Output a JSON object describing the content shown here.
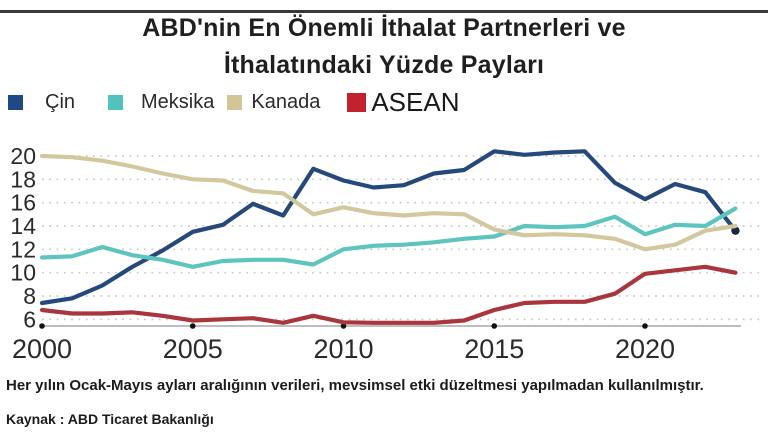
{
  "title": {
    "line1": "ABD'nin En Önemli İthalat Partnerleri ve",
    "line2": "İthalatındaki Yüzde Payları"
  },
  "legend": [
    {
      "label": "Çin",
      "color": "#1d4a85"
    },
    {
      "label": "Meksika",
      "color": "#52c2bf"
    },
    {
      "label": "Kanada",
      "color": "#d2c596"
    },
    {
      "label": "ASEAN",
      "color": "#c2212e"
    }
  ],
  "chart_data": {
    "type": "line",
    "title": "ABD'nin En Önemli İthalat Partnerleri ve İthalatındaki Yüzde Payları",
    "x": [
      2000,
      2001,
      2002,
      2003,
      2004,
      2005,
      2006,
      2007,
      2008,
      2009,
      2010,
      2011,
      2012,
      2013,
      2014,
      2015,
      2016,
      2017,
      2018,
      2019,
      2020,
      2021,
      2022,
      2023
    ],
    "series": [
      {
        "name": "Çin",
        "color": "#25497a",
        "values": [
          7.4,
          7.8,
          8.9,
          10.5,
          11.9,
          13.5,
          14.1,
          15.9,
          14.9,
          18.9,
          17.9,
          17.3,
          17.5,
          18.5,
          18.8,
          20.4,
          20.1,
          20.3,
          20.4,
          17.7,
          16.3,
          17.6,
          16.9,
          13.6
        ],
        "end_marker": true
      },
      {
        "name": "Meksika",
        "color": "#5dc4bf",
        "values": [
          11.3,
          11.4,
          12.2,
          11.5,
          11.1,
          10.5,
          11.0,
          11.1,
          11.1,
          10.7,
          12.0,
          12.3,
          12.4,
          12.6,
          12.9,
          13.1,
          14.0,
          13.9,
          14.0,
          14.8,
          13.3,
          14.1,
          14.0,
          15.5
        ],
        "end_marker": false
      },
      {
        "name": "Kanada",
        "color": "#d3c79e",
        "values": [
          20.0,
          19.9,
          19.6,
          19.1,
          18.5,
          18.0,
          17.9,
          17.0,
          16.8,
          15.0,
          15.6,
          15.1,
          14.9,
          15.1,
          15.0,
          13.7,
          13.2,
          13.3,
          13.2,
          12.9,
          12.0,
          12.4,
          13.6,
          14.0
        ],
        "end_marker": false
      },
      {
        "name": "ASEAN",
        "color": "#a9363c",
        "values": [
          6.8,
          6.5,
          6.5,
          6.6,
          6.3,
          5.9,
          6.0,
          6.1,
          5.7,
          6.3,
          5.75,
          5.7,
          5.7,
          5.7,
          5.9,
          6.8,
          7.4,
          7.5,
          7.5,
          8.2,
          9.9,
          10.2,
          10.5,
          10.0
        ],
        "end_marker": false
      }
    ],
    "xticks": [
      2000,
      2005,
      2010,
      2015,
      2020
    ],
    "yticks": [
      6,
      8,
      10,
      12,
      14,
      16,
      18,
      20
    ],
    "ylim": [
      5.43,
      21
    ],
    "grid": "horizontal-dotted",
    "legend_position": "top-left",
    "xlabel": "",
    "ylabel": ""
  },
  "footnote": "Her yılın Ocak-Mayıs ayları aralığının verileri, mevsimsel etki düzeltmesi yapılmadan kullanılmıştır.",
  "source": "Kaynak : ABD Ticaret Bakanlığı"
}
